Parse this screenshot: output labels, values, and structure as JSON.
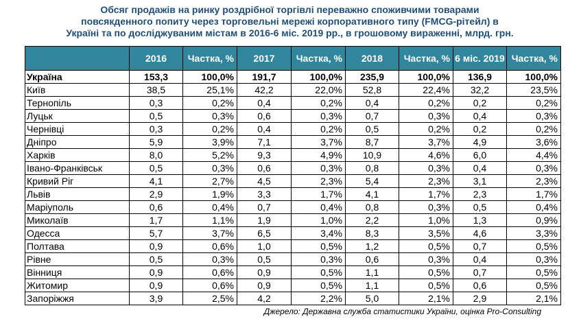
{
  "title": {
    "line1": "Обсяг продажів на ринку роздрібної торгівлі переважно споживчими товарами",
    "line2": "повсякденного попиту через торговельні мережі корпоративного типу (FMCG-рітейл) в",
    "line3": "Україні та по досліджуваним містам в 2016-6 міс. 2019 рр., в грошовому вираженні, млрд. грн."
  },
  "chart_data": {
    "type": "table",
    "columns": [
      "",
      "2016",
      "Частка, %",
      "2017",
      "Частка, %",
      "2018",
      "Частка, %",
      "6 міс. 2019",
      "Частка, %"
    ],
    "rows": [
      [
        "Україна",
        "153,3",
        "100,0%",
        "191,7",
        "100,0%",
        "235,9",
        "100,0%",
        "136,9",
        "100,0%"
      ],
      [
        "Київ",
        "38,5",
        "25,1%",
        "42,2",
        "22,0%",
        "52,8",
        "22,4%",
        "32,2",
        "23,5%"
      ],
      [
        "Тернопіль",
        "0,3",
        "0,2%",
        "0,4",
        "0,2%",
        "0,4",
        "0,2%",
        "0,2",
        "0,2%"
      ],
      [
        "Луцьк",
        "0,5",
        "0,3%",
        "0,6",
        "0,3%",
        "0,7",
        "0,3%",
        "0,4",
        "0,3%"
      ],
      [
        "Чернівці",
        "0,3",
        "0,2%",
        "0,4",
        "0,2%",
        "0,5",
        "0,2%",
        "0,2",
        "0,2%"
      ],
      [
        "Дніпро",
        "5,9",
        "3,9%",
        "7,1",
        "3,7%",
        "8,7",
        "3,7%",
        "4,9",
        "3,6%"
      ],
      [
        "Харків",
        "8,0",
        "5,2%",
        "9,3",
        "4,9%",
        "10,9",
        "4,6%",
        "6,0",
        "4,4%"
      ],
      [
        "Івано-Франківськ",
        "0,5",
        "0,3%",
        "0,6",
        "0,3%",
        "0,8",
        "0,3%",
        "0,4",
        "0,3%"
      ],
      [
        "Кривий Ріг",
        "4,1",
        "2,7%",
        "4,5",
        "2,3%",
        "5,4",
        "2,3%",
        "3,1",
        "2,3%"
      ],
      [
        "Львів",
        "2,9",
        "1,9%",
        "3,3",
        "1,7%",
        "4,1",
        "1,7%",
        "2,3",
        "1,7%"
      ],
      [
        "Маріуполь",
        "0,6",
        "0,4%",
        "0,7",
        "0,4%",
        "0,8",
        "0,3%",
        "0,5",
        "0,4%"
      ],
      [
        "Миколаїв",
        "1,7",
        "1,1%",
        "1,9",
        "1,0%",
        "2,2",
        "1,0%",
        "1,3",
        "0,9%"
      ],
      [
        "Одесса",
        "5,7",
        "3,7%",
        "6,5",
        "3,4%",
        "8,3",
        "3,5%",
        "4,6",
        "3,3%"
      ],
      [
        "Полтава",
        "0,9",
        "0,6%",
        "1,0",
        "0,5%",
        "1,2",
        "0,5%",
        "0,7",
        "0,5%"
      ],
      [
        "Рівне",
        "0,5",
        "0,3%",
        "0,5",
        "0,3%",
        "0,6",
        "0,3%",
        "0,4",
        "0,3%"
      ],
      [
        "Вінниця",
        "0,9",
        "0,6%",
        "0,9",
        "0,5%",
        "1,1",
        "0,5%",
        "0,7",
        "0,5%"
      ],
      [
        "Житомир",
        "0,9",
        "0,6%",
        "0,9",
        "0,5%",
        "1,1",
        "0,5%",
        "0,6",
        "0,5%"
      ],
      [
        "Запоріжжя",
        "3,9",
        "2,5%",
        "4,2",
        "2,2%",
        "5,0",
        "2,1%",
        "2,9",
        "2,1%"
      ]
    ]
  },
  "source": "Джерело: Державна служба статистики України, оцінка Pro-Consulting",
  "colors": {
    "header_bg": "#31859c",
    "header_text": "#ffffff",
    "title_text": "#1f4e79"
  }
}
